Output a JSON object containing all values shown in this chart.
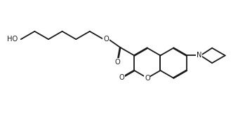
{
  "bg_color": "#ffffff",
  "line_color": "#1a1a1a",
  "line_width": 1.3,
  "font_size": 7.2,
  "figsize": [
    3.59,
    1.66
  ],
  "dpi": 100,
  "xlim": [
    0,
    10
  ],
  "ylim": [
    0,
    4.6
  ]
}
